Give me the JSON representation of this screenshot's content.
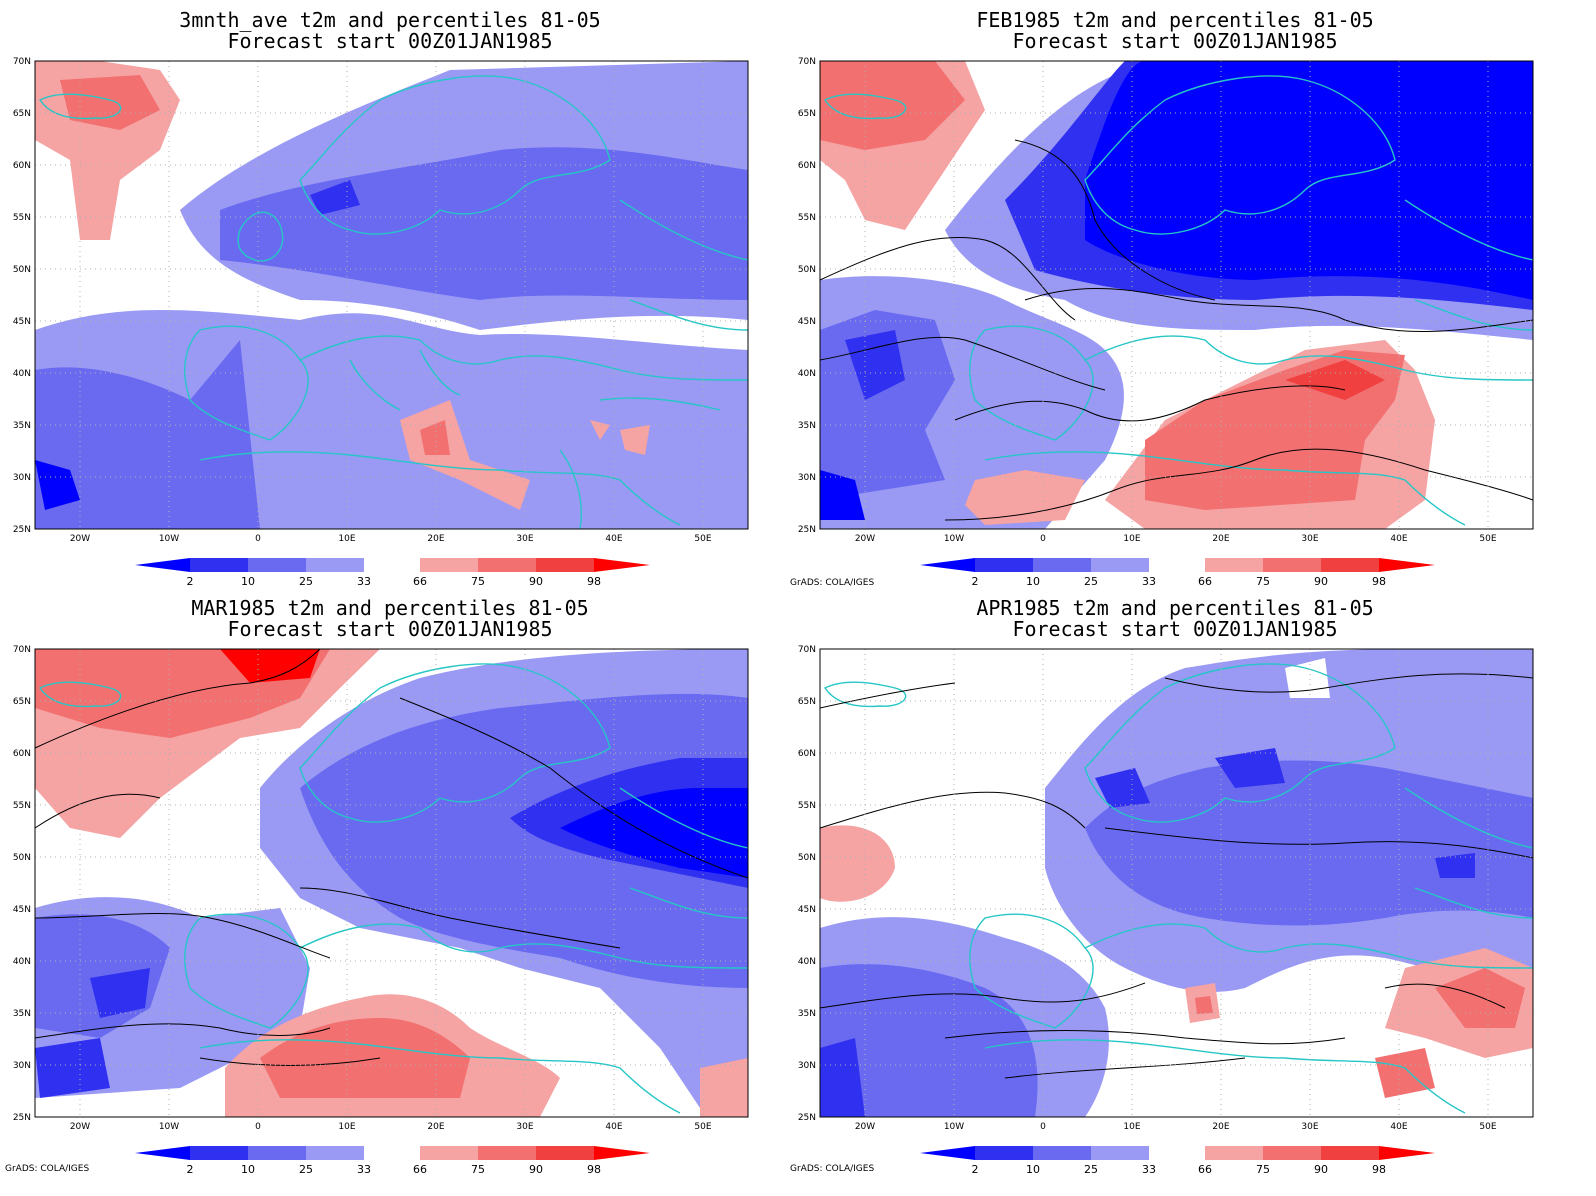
{
  "panels": [
    {
      "title1": "3mnth_ave t2m and percentiles 81-05",
      "title2": "Forecast start 00Z01JAN1985",
      "credit": ""
    },
    {
      "title1": "FEB1985 t2m and percentiles 81-05",
      "title2": "Forecast start 00Z01JAN1985",
      "credit": "GrADS: COLA/IGES"
    },
    {
      "title1": "MAR1985 t2m and percentiles 81-05",
      "title2": "Forecast start 00Z01JAN1985",
      "credit": "GrADS: COLA/IGES"
    },
    {
      "title1": "APR1985 t2m and percentiles 81-05",
      "title2": "Forecast start 00Z01JAN1985",
      "credit": "GrADS: COLA/IGES"
    }
  ],
  "axes": {
    "lat_labels": [
      "25N",
      "30N",
      "35N",
      "40N",
      "45N",
      "50N",
      "55N",
      "60N",
      "65N",
      "70N"
    ],
    "lon_labels": [
      "20W",
      "10W",
      "0",
      "10E",
      "20E",
      "30E",
      "40E",
      "50E"
    ],
    "lat_range": [
      25,
      70
    ],
    "lon_range": [
      -25,
      55
    ]
  },
  "colorbar": {
    "labels": [
      "2",
      "10",
      "25",
      "33",
      "66",
      "75",
      "90",
      "98"
    ],
    "colors": [
      "#0000ff",
      "#3030f0",
      "#6a6af0",
      "#9a9af5",
      "#ffffff",
      "#f5a3a3",
      "#f27070",
      "#f04040",
      "#ff0000"
    ]
  },
  "colors": {
    "coast": "#26c6c6",
    "contour": "#000000",
    "grid": "#b0b0b0"
  }
}
